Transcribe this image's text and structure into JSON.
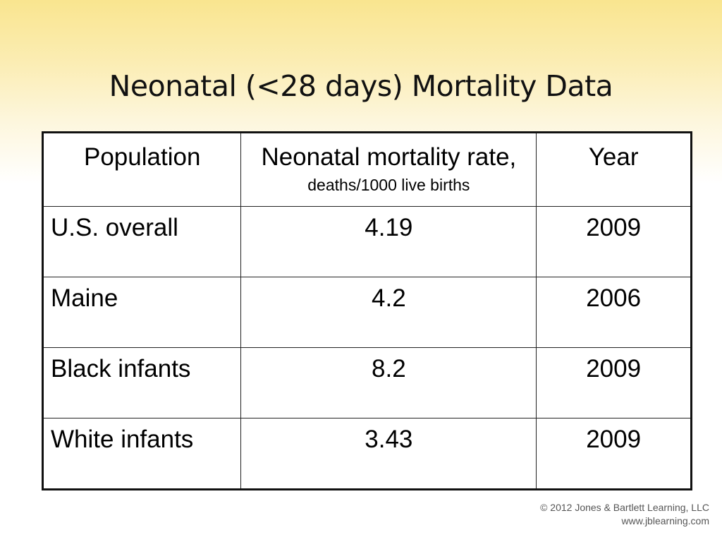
{
  "slide": {
    "title": "Neonatal (<28 days) Mortality Data"
  },
  "table": {
    "headers": {
      "population": "Population",
      "rate_main": "Neonatal mortality rate,",
      "rate_sub": "deaths/1000 live births",
      "year": "Year"
    },
    "rows": [
      {
        "population": "U.S. overall",
        "rate": "4.19",
        "year": "2009"
      },
      {
        "population": "Maine",
        "rate": "4.2",
        "year": "2006"
      },
      {
        "population": "Black infants",
        "rate": "8.2",
        "year": "2009"
      },
      {
        "population": "White infants",
        "rate": "3.43",
        "year": "2009"
      }
    ]
  },
  "footer": {
    "copyright": "© 2012 Jones & Bartlett Learning, LLC",
    "website": "www.jblearning.com"
  }
}
